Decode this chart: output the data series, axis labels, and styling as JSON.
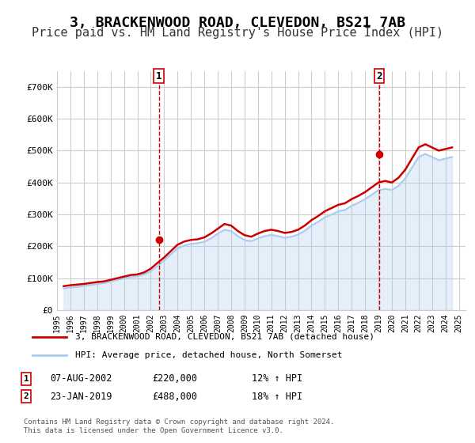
{
  "title": "3, BRACKENWOOD ROAD, CLEVEDON, BS21 7AB",
  "subtitle": "Price paid vs. HM Land Registry's House Price Index (HPI)",
  "title_fontsize": 13,
  "subtitle_fontsize": 11,
  "background_color": "#ffffff",
  "plot_background": "#ffffff",
  "grid_color": "#cccccc",
  "red_color": "#cc0000",
  "blue_color": "#aaccee",
  "annotation1": {
    "x_year": 2002.6,
    "label": "1",
    "date": "07-AUG-2002",
    "price": "£220,000",
    "hpi": "12% ↑ HPI"
  },
  "annotation2": {
    "x_year": 2019.07,
    "label": "2",
    "date": "23-JAN-2019",
    "price": "£488,000",
    "hpi": "18% ↑ HPI"
  },
  "legend_line1": "3, BRACKENWOOD ROAD, CLEVEDON, BS21 7AB (detached house)",
  "legend_line2": "HPI: Average price, detached house, North Somerset",
  "footer": "Contains HM Land Registry data © Crown copyright and database right 2024.\nThis data is licensed under the Open Government Licence v3.0.",
  "ylim": [
    0,
    750000
  ],
  "yticks": [
    0,
    100000,
    200000,
    300000,
    400000,
    500000,
    600000,
    700000
  ],
  "ytick_labels": [
    "£0",
    "£100K",
    "£200K",
    "£300K",
    "£400K",
    "£500K",
    "£600K",
    "£700K"
  ],
  "hpi_data": {
    "years": [
      1995.5,
      1996.0,
      1996.5,
      1997.0,
      1997.5,
      1998.0,
      1998.5,
      1999.0,
      1999.5,
      2000.0,
      2000.5,
      2001.0,
      2001.5,
      2002.0,
      2002.5,
      2003.0,
      2003.5,
      2004.0,
      2004.5,
      2005.0,
      2005.5,
      2006.0,
      2006.5,
      2007.0,
      2007.5,
      2008.0,
      2008.5,
      2009.0,
      2009.5,
      2010.0,
      2010.5,
      2011.0,
      2011.5,
      2012.0,
      2012.5,
      2013.0,
      2013.5,
      2014.0,
      2014.5,
      2015.0,
      2015.5,
      2016.0,
      2016.5,
      2017.0,
      2017.5,
      2018.0,
      2018.5,
      2019.0,
      2019.5,
      2020.0,
      2020.5,
      2021.0,
      2021.5,
      2022.0,
      2022.5,
      2023.0,
      2023.5,
      2024.0,
      2024.5
    ],
    "values": [
      75000,
      78000,
      80000,
      82000,
      85000,
      88000,
      90000,
      95000,
      100000,
      105000,
      110000,
      112000,
      118000,
      130000,
      148000,
      165000,
      185000,
      205000,
      215000,
      220000,
      222000,
      228000,
      240000,
      255000,
      270000,
      265000,
      248000,
      235000,
      230000,
      240000,
      248000,
      252000,
      248000,
      242000,
      245000,
      252000,
      265000,
      282000,
      295000,
      310000,
      320000,
      330000,
      335000,
      348000,
      358000,
      370000,
      385000,
      400000,
      405000,
      400000,
      415000,
      440000,
      475000,
      510000,
      520000,
      510000,
      500000,
      505000,
      510000
    ]
  },
  "hpi_index_data": {
    "years": [
      1995.5,
      1996.0,
      1996.5,
      1997.0,
      1997.5,
      1998.0,
      1998.5,
      1999.0,
      1999.5,
      2000.0,
      2000.5,
      2001.0,
      2001.5,
      2002.0,
      2002.5,
      2003.0,
      2003.5,
      2004.0,
      2004.5,
      2005.0,
      2005.5,
      2006.0,
      2006.5,
      2007.0,
      2007.5,
      2008.0,
      2008.5,
      2009.0,
      2009.5,
      2010.0,
      2010.5,
      2011.0,
      2011.5,
      2012.0,
      2012.5,
      2013.0,
      2013.5,
      2014.0,
      2014.5,
      2015.0,
      2015.5,
      2016.0,
      2016.5,
      2017.0,
      2017.5,
      2018.0,
      2018.5,
      2019.0,
      2019.5,
      2020.0,
      2020.5,
      2021.0,
      2021.5,
      2022.0,
      2022.5,
      2023.0,
      2023.5,
      2024.0,
      2024.5
    ],
    "values": [
      68000,
      71000,
      73000,
      76000,
      79000,
      82000,
      85000,
      90000,
      95000,
      100000,
      104000,
      107000,
      112000,
      122000,
      138000,
      156000,
      175000,
      194000,
      203000,
      208000,
      210000,
      215000,
      225000,
      240000,
      252000,
      248000,
      232000,
      220000,
      216000,
      225000,
      232000,
      236000,
      232000,
      227000,
      230000,
      237000,
      249000,
      265000,
      277000,
      291000,
      300000,
      310000,
      314000,
      327000,
      337000,
      348000,
      362000,
      376000,
      380000,
      377000,
      390000,
      413000,
      447000,
      480000,
      490000,
      480000,
      470000,
      475000,
      480000
    ]
  },
  "sale_points": [
    {
      "year": 2002.6,
      "price": 220000
    },
    {
      "year": 2019.07,
      "price": 488000
    }
  ],
  "xmin": 1995.0,
  "xmax": 2025.5,
  "xticks": [
    1995,
    1996,
    1997,
    1998,
    1999,
    2000,
    2001,
    2002,
    2003,
    2004,
    2005,
    2006,
    2007,
    2008,
    2009,
    2010,
    2011,
    2012,
    2013,
    2014,
    2015,
    2016,
    2017,
    2018,
    2019,
    2020,
    2021,
    2022,
    2023,
    2024,
    2025
  ]
}
